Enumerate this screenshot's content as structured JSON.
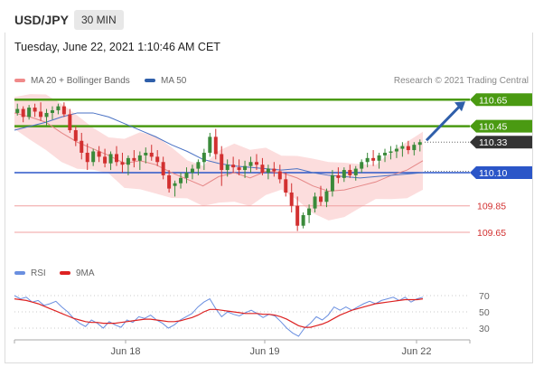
{
  "header": {
    "pair": "USD/JPY",
    "timeframe": "30 MIN",
    "timestamp": "Tuesday, June 22, 2021 1:10:46 AM CET"
  },
  "legend": {
    "ma20": "MA 20 + Bollinger Bands",
    "ma50": "MA 50",
    "credit": "Research © 2021 Trading Central"
  },
  "rsi_legend": {
    "rsi": "RSI",
    "ma9": "9MA"
  },
  "colors": {
    "up": "#3a8a3a",
    "down": "#d23030",
    "green_level": "#4a9a12",
    "blue_level": "#2b56c8",
    "red_level": "#e88",
    "bollinger": "#fbd7d7",
    "ma20": "#e58787",
    "ma50": "#4a72c4",
    "current": "#333333"
  },
  "chart_data": [
    {
      "type": "candlestick",
      "title": "USD/JPY",
      "x_tick_labels": [
        "Jun 18",
        "Jun 19",
        "Jun 22"
      ],
      "ylim": [
        109.48,
        110.72
      ],
      "levels": [
        {
          "label": "110.65",
          "value": 110.65,
          "kind": "resistance"
        },
        {
          "label": "110.45",
          "value": 110.45,
          "kind": "resistance"
        },
        {
          "label": "110.33",
          "value": 110.33,
          "kind": "current"
        },
        {
          "label": "110.10",
          "value": 110.1,
          "kind": "pivot"
        },
        {
          "label": "109.85",
          "value": 109.85,
          "kind": "support"
        },
        {
          "label": "109.65",
          "value": 109.65,
          "kind": "support"
        }
      ],
      "series": [
        {
          "name": "MA 20 + Bollinger Bands",
          "kind": "ma20",
          "values": [
            110.55,
            110.52,
            110.48,
            110.4,
            110.33,
            110.28,
            110.23,
            110.17,
            110.19,
            110.16,
            110.1,
            110.05,
            110.0,
            110.07,
            110.1,
            110.06,
            110.11,
            110.1,
            110.06,
            110.0,
            109.96,
            109.97,
            110.0,
            110.03,
            110.08,
            110.12,
            110.19
          ]
        },
        {
          "name": "MA 50",
          "kind": "ma50",
          "values": [
            110.42,
            110.45,
            110.48,
            110.52,
            110.55,
            110.55,
            110.52,
            110.47,
            110.42,
            110.37,
            110.31,
            110.26,
            110.2,
            110.17,
            110.15,
            110.14,
            110.13,
            110.12,
            110.13,
            110.1,
            110.08,
            110.07,
            110.06,
            110.07,
            110.08,
            110.09,
            110.1
          ]
        }
      ],
      "candles": [
        [
          110.55,
          110.62,
          110.53,
          110.58
        ],
        [
          110.58,
          110.6,
          110.48,
          110.52
        ],
        [
          110.52,
          110.61,
          110.5,
          110.59
        ],
        [
          110.59,
          110.62,
          110.52,
          110.56
        ],
        [
          110.56,
          110.63,
          110.49,
          110.52
        ],
        [
          110.52,
          110.58,
          110.45,
          110.55
        ],
        [
          110.55,
          110.6,
          110.5,
          110.57
        ],
        [
          110.57,
          110.62,
          110.54,
          110.6
        ],
        [
          110.6,
          110.63,
          110.52,
          110.54
        ],
        [
          110.54,
          110.58,
          110.4,
          110.42
        ],
        [
          110.42,
          110.45,
          110.3,
          110.34
        ],
        [
          110.34,
          110.4,
          110.2,
          110.25
        ],
        [
          110.25,
          110.32,
          110.12,
          110.18
        ],
        [
          110.18,
          110.28,
          110.15,
          110.26
        ],
        [
          110.26,
          110.3,
          110.18,
          110.22
        ],
        [
          110.22,
          110.28,
          110.14,
          110.17
        ],
        [
          110.17,
          110.26,
          110.12,
          110.24
        ],
        [
          110.24,
          110.3,
          110.15,
          110.18
        ],
        [
          110.18,
          110.25,
          110.1,
          110.16
        ],
        [
          110.16,
          110.23,
          110.08,
          110.21
        ],
        [
          110.21,
          110.27,
          110.14,
          110.19
        ],
        [
          110.19,
          110.26,
          110.12,
          110.23
        ],
        [
          110.23,
          110.29,
          110.17,
          110.25
        ],
        [
          110.25,
          110.31,
          110.19,
          110.22
        ],
        [
          110.22,
          110.27,
          110.15,
          110.18
        ],
        [
          110.18,
          110.22,
          110.05,
          110.08
        ],
        [
          110.08,
          110.12,
          109.95,
          109.98
        ],
        [
          110.0,
          110.04,
          109.92,
          110.02
        ],
        [
          110.02,
          110.1,
          109.98,
          110.06
        ],
        [
          110.06,
          110.14,
          110.02,
          110.1
        ],
        [
          110.1,
          110.16,
          110.05,
          110.13
        ],
        [
          110.13,
          110.2,
          110.08,
          110.18
        ],
        [
          110.18,
          110.28,
          110.12,
          110.25
        ],
        [
          110.25,
          110.4,
          110.22,
          110.37
        ],
        [
          110.37,
          110.43,
          110.2,
          110.24
        ],
        [
          110.24,
          110.3,
          110.0,
          110.12
        ],
        [
          110.12,
          110.2,
          110.07,
          110.16
        ],
        [
          110.16,
          110.22,
          110.1,
          110.14
        ],
        [
          110.14,
          110.2,
          110.08,
          110.12
        ],
        [
          110.12,
          110.19,
          110.06,
          110.15
        ],
        [
          110.15,
          110.22,
          110.1,
          110.18
        ],
        [
          110.18,
          110.24,
          110.12,
          110.16
        ],
        [
          110.16,
          110.21,
          110.08,
          110.1
        ],
        [
          110.1,
          110.16,
          110.05,
          110.13
        ],
        [
          110.13,
          110.18,
          110.07,
          110.11
        ],
        [
          110.11,
          110.16,
          110.02,
          110.05
        ],
        [
          110.05,
          110.1,
          109.92,
          109.95
        ],
        [
          109.95,
          110.02,
          109.8,
          109.85
        ],
        [
          109.85,
          109.92,
          109.66,
          109.7
        ],
        [
          109.7,
          109.8,
          109.68,
          109.78
        ],
        [
          109.78,
          109.86,
          109.72,
          109.83
        ],
        [
          109.83,
          109.95,
          109.8,
          109.92
        ],
        [
          109.92,
          110.0,
          109.85,
          109.88
        ],
        [
          109.88,
          109.98,
          109.84,
          109.96
        ],
        [
          109.96,
          110.12,
          109.92,
          110.08
        ],
        [
          110.08,
          110.14,
          110.02,
          110.06
        ],
        [
          110.06,
          110.14,
          110.03,
          110.12
        ],
        [
          110.12,
          110.16,
          110.06,
          110.08
        ],
        [
          110.08,
          110.15,
          110.04,
          110.13
        ],
        [
          110.13,
          110.2,
          110.1,
          110.18
        ],
        [
          110.18,
          110.25,
          110.14,
          110.21
        ],
        [
          110.21,
          110.27,
          110.15,
          110.19
        ],
        [
          110.19,
          110.25,
          110.13,
          110.23
        ],
        [
          110.23,
          110.28,
          110.18,
          110.25
        ],
        [
          110.25,
          110.3,
          110.2,
          110.26
        ],
        [
          110.26,
          110.31,
          110.21,
          110.28
        ],
        [
          110.28,
          110.33,
          110.22,
          110.3
        ],
        [
          110.3,
          110.34,
          110.24,
          110.27
        ],
        [
          110.27,
          110.33,
          110.23,
          110.31
        ],
        [
          110.31,
          110.35,
          110.26,
          110.33
        ]
      ],
      "forecast_arrow": {
        "from": 110.33,
        "to": 110.65
      }
    },
    {
      "type": "line",
      "title": "RSI",
      "ylim": [
        20,
        80
      ],
      "y_tick_labels": [
        "70",
        "50",
        "30"
      ],
      "y_tick_values": [
        70,
        50,
        30
      ],
      "series": [
        {
          "name": "RSI",
          "kind": "rsi",
          "values": [
            70,
            66,
            68,
            62,
            64,
            58,
            60,
            63,
            56,
            50,
            42,
            36,
            32,
            40,
            36,
            30,
            38,
            34,
            31,
            40,
            37,
            44,
            42,
            46,
            40,
            36,
            30,
            34,
            40,
            44,
            48,
            56,
            62,
            66,
            54,
            44,
            50,
            47,
            45,
            49,
            52,
            48,
            43,
            47,
            45,
            38,
            30,
            24,
            20,
            30,
            36,
            44,
            40,
            46,
            56,
            52,
            56,
            52,
            56,
            60,
            63,
            60,
            64,
            66,
            68,
            64,
            68,
            62,
            66,
            68
          ]
        },
        {
          "name": "9MA",
          "kind": "ma9",
          "values": [
            66,
            65,
            64,
            62,
            60,
            57,
            54,
            51,
            48,
            45,
            42,
            40,
            38,
            37,
            37,
            36,
            36,
            36,
            37,
            38,
            39,
            40,
            41,
            41,
            40,
            39,
            38,
            38,
            39,
            41,
            43,
            46,
            50,
            53,
            53,
            52,
            51,
            50,
            49,
            48,
            48,
            48,
            47,
            47,
            46,
            44,
            41,
            37,
            33,
            31,
            31,
            33,
            35,
            38,
            42,
            46,
            49,
            52,
            54,
            56,
            58,
            60,
            61,
            62,
            63,
            64,
            65,
            65,
            65,
            66
          ]
        }
      ]
    }
  ]
}
